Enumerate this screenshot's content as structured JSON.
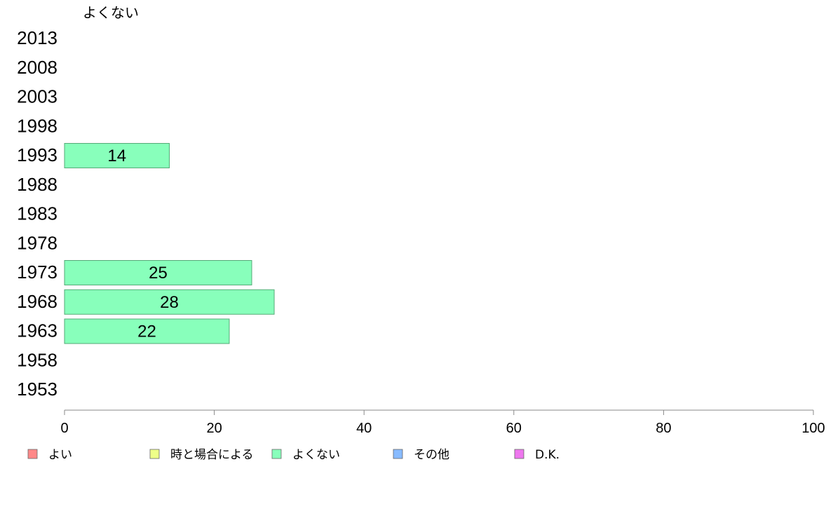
{
  "chart_data": {
    "type": "bar",
    "orientation": "horizontal",
    "title": "よくない",
    "categories": [
      "2013",
      "2008",
      "2003",
      "1998",
      "1993",
      "1988",
      "1983",
      "1978",
      "1973",
      "1968",
      "1963",
      "1958",
      "1953"
    ],
    "series": [
      {
        "name": "よくない",
        "color": "#88ffbb",
        "values": [
          null,
          null,
          null,
          null,
          14,
          null,
          null,
          null,
          25,
          28,
          22,
          null,
          null
        ]
      }
    ],
    "x_ticks": [
      "0",
      "20",
      "40",
      "60",
      "80",
      "100"
    ],
    "xlim": [
      0,
      100
    ],
    "grid": false,
    "legend": {
      "placement": "bottom",
      "items": [
        {
          "label": "よい",
          "color": "#ff8888"
        },
        {
          "label": "時と場合による",
          "color": "#eeff88"
        },
        {
          "label": "よくない",
          "color": "#88ffbb"
        },
        {
          "label": "その他",
          "color": "#88bbff"
        },
        {
          "label": "D.K.",
          "color": "#ee77ee"
        }
      ]
    },
    "colors": {
      "axis": "#888888",
      "bar_stroke": "#55aa77"
    }
  }
}
